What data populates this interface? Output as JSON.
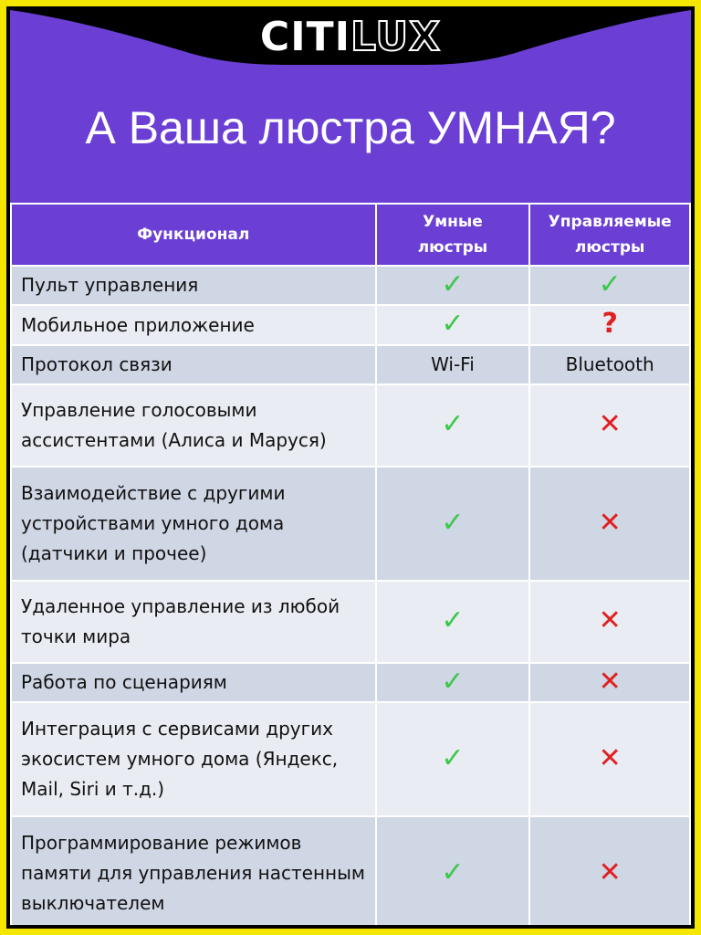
{
  "brand": {
    "logo_solid": "CITI",
    "logo_outline": "LUX"
  },
  "title": "А Ваша люстра УМНАЯ?",
  "table": {
    "headers": [
      "Функционал",
      "Умные люстры",
      "Управляемые люстры"
    ],
    "rows": [
      {
        "feature": "Пульт управления",
        "smart": "✓",
        "smart_type": "check",
        "managed": "✓",
        "managed_type": "check",
        "h": 43,
        "tone": "d"
      },
      {
        "feature": "Мобильное приложение",
        "smart": "✓",
        "smart_type": "check",
        "managed": "?",
        "managed_type": "question",
        "h": 44,
        "tone": "l"
      },
      {
        "feature": "Протокол связи",
        "smart": "Wi-Fi",
        "smart_type": "text",
        "managed": "Bluetooth",
        "managed_type": "text",
        "h": 43,
        "tone": "d"
      },
      {
        "feature": "Управление голосовыми ассистентами (Алиса и Маруся)",
        "smart": "✓",
        "smart_type": "check",
        "managed": "✕",
        "managed_type": "cross",
        "h": 90,
        "tone": "l"
      },
      {
        "feature": "Взаимодействие с другими устройствами умного дома (датчики и прочее)",
        "smart": "✓",
        "smart_type": "check",
        "managed": "✕",
        "managed_type": "cross",
        "h": 125,
        "tone": "d"
      },
      {
        "feature": "Удаленное управление из любой точки мира",
        "smart": "✓",
        "smart_type": "check",
        "managed": "✕",
        "managed_type": "cross",
        "h": 90,
        "tone": "l"
      },
      {
        "feature": "Работа по сценариям",
        "smart": "✓",
        "smart_type": "check",
        "managed": "✕",
        "managed_type": "cross",
        "h": 43,
        "tone": "d"
      },
      {
        "feature": "Интеграция с сервисами других экосистем умного дома (Яндекс, Mail, Siri и т.д.)",
        "smart": "✓",
        "smart_type": "check",
        "managed": "✕",
        "managed_type": "cross",
        "h": 125,
        "tone": "l"
      },
      {
        "feature": "Программирование режимов памяти для управления настенным выключателем",
        "smart": "✓",
        "smart_type": "check",
        "managed": "✕",
        "managed_type": "cross",
        "h": 125,
        "tone": "d"
      }
    ]
  },
  "colors": {
    "purple": "#6b3fd4",
    "yellow": "#f5e600",
    "check": "#3cc84a",
    "cross": "#e02020"
  }
}
